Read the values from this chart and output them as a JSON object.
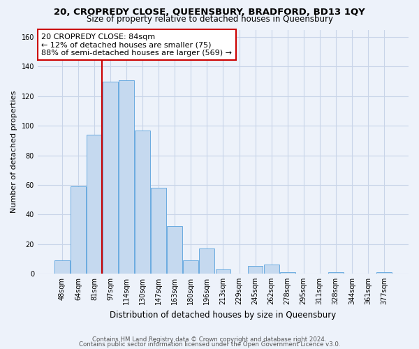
{
  "title": "20, CROPREDY CLOSE, QUEENSBURY, BRADFORD, BD13 1QY",
  "subtitle": "Size of property relative to detached houses in Queensbury",
  "xlabel": "Distribution of detached houses by size in Queensbury",
  "ylabel": "Number of detached properties",
  "bar_labels": [
    "48sqm",
    "64sqm",
    "81sqm",
    "97sqm",
    "114sqm",
    "130sqm",
    "147sqm",
    "163sqm",
    "180sqm",
    "196sqm",
    "213sqm",
    "229sqm",
    "245sqm",
    "262sqm",
    "278sqm",
    "295sqm",
    "311sqm",
    "328sqm",
    "344sqm",
    "361sqm",
    "377sqm"
  ],
  "bar_heights": [
    9,
    59,
    94,
    130,
    131,
    97,
    58,
    32,
    9,
    17,
    3,
    0,
    5,
    6,
    1,
    0,
    0,
    1,
    0,
    0,
    1
  ],
  "bar_color": "#c5d9ef",
  "bar_edge_color": "#6aabe0",
  "vline_color": "#cc0000",
  "annotation_title": "20 CROPREDY CLOSE: 84sqm",
  "annotation_line1": "← 12% of detached houses are smaller (75)",
  "annotation_line2": "88% of semi-detached houses are larger (569) →",
  "annotation_box_edge": "#cc0000",
  "ylim": [
    0,
    165
  ],
  "yticks": [
    0,
    20,
    40,
    60,
    80,
    100,
    120,
    140,
    160
  ],
  "footer1": "Contains HM Land Registry data © Crown copyright and database right 2024.",
  "footer2": "Contains public sector information licensed under the Open Government Licence v3.0.",
  "bg_color": "#edf2fa",
  "grid_color": "#c8d4e8",
  "title_fontsize": 9.5,
  "subtitle_fontsize": 8.5,
  "ylabel_fontsize": 8,
  "xlabel_fontsize": 8.5,
  "tick_fontsize": 7
}
